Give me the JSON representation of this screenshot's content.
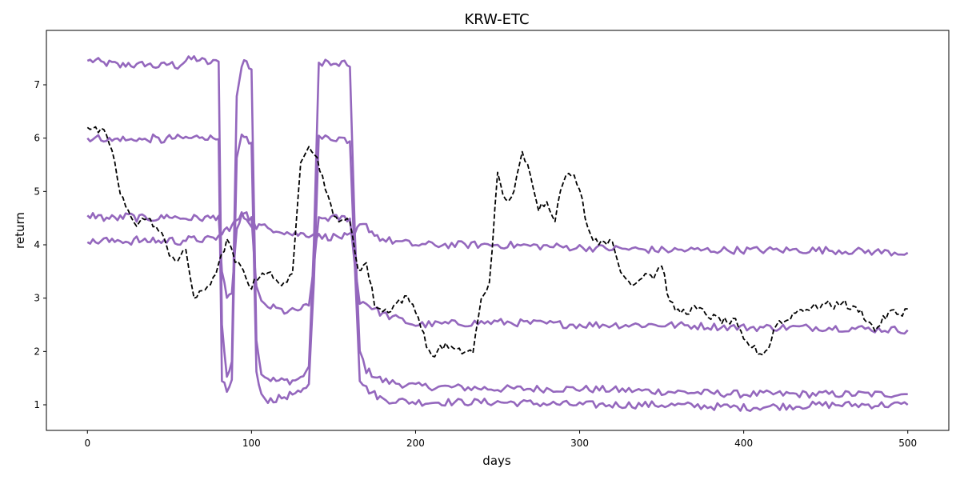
{
  "chart_data": {
    "type": "line",
    "title": "KRW-ETC",
    "xlabel": "days",
    "ylabel": "return",
    "xlim": [
      -25,
      525
    ],
    "ylim": [
      0.52,
      8.02
    ],
    "x_ticks": [
      0,
      100,
      200,
      300,
      400,
      500
    ],
    "y_ticks": [
      1,
      2,
      3,
      4,
      5,
      6,
      7
    ],
    "grid": false,
    "legend": "none",
    "colors": {
      "band": "#9467bd",
      "actual": "#000000"
    },
    "series": [
      {
        "style": "dashed",
        "color": "#000000",
        "x": [
          0,
          5,
          10,
          15,
          20,
          25,
          30,
          35,
          40,
          45,
          50,
          55,
          60,
          65,
          70,
          75,
          80,
          85,
          90,
          95,
          100,
          105,
          110,
          115,
          120,
          125,
          130,
          135,
          140,
          145,
          150,
          155,
          160,
          165,
          170,
          175,
          180,
          185,
          190,
          195,
          200,
          205,
          210,
          215,
          220,
          225,
          230,
          235,
          240,
          245,
          250,
          255,
          260,
          265,
          270,
          275,
          280,
          285,
          290,
          295,
          300,
          305,
          310,
          315,
          320,
          325,
          330,
          335,
          340,
          345,
          350,
          355,
          360,
          365,
          370,
          375,
          380,
          385,
          390,
          395,
          400,
          405,
          410,
          415,
          420,
          425,
          430,
          435,
          440,
          445,
          450,
          455,
          460,
          465,
          470,
          475,
          480,
          485,
          490,
          495,
          500
        ],
        "values": [
          6.2,
          6.15,
          6.1,
          5.8,
          4.95,
          4.6,
          4.4,
          4.5,
          4.4,
          4.2,
          3.85,
          3.7,
          3.9,
          3.0,
          3.1,
          3.3,
          3.6,
          4.1,
          3.7,
          3.5,
          3.2,
          3.45,
          3.5,
          3.3,
          3.3,
          3.4,
          5.6,
          5.9,
          5.6,
          5.1,
          4.5,
          4.5,
          4.4,
          3.55,
          3.65,
          2.9,
          2.75,
          2.8,
          2.95,
          3.0,
          2.8,
          2.3,
          1.85,
          2.1,
          2.1,
          2.0,
          2.0,
          2.0,
          2.95,
          3.3,
          5.3,
          4.8,
          5.0,
          5.7,
          5.35,
          4.7,
          4.8,
          4.5,
          5.2,
          5.35,
          5.1,
          4.3,
          4.05,
          4.1,
          4.0,
          3.5,
          3.3,
          3.3,
          3.5,
          3.4,
          3.65,
          2.9,
          2.75,
          2.75,
          2.8,
          2.75,
          2.65,
          2.6,
          2.55,
          2.55,
          2.2,
          2.1,
          1.95,
          2.05,
          2.55,
          2.55,
          2.7,
          2.8,
          2.8,
          2.85,
          2.9,
          2.85,
          2.95,
          2.8,
          2.8,
          2.6,
          2.4,
          2.6,
          2.75,
          2.7,
          2.8
        ]
      },
      {
        "style": "solid",
        "color": "#9467bd",
        "x": [
          0,
          5,
          10,
          15,
          20,
          25,
          30,
          35,
          40,
          45,
          50,
          55,
          60,
          65,
          70,
          75,
          80,
          82,
          85,
          88,
          91,
          94,
          97,
          100,
          103,
          106,
          110,
          115,
          120,
          125,
          130,
          135,
          138,
          141,
          145,
          150,
          155,
          160,
          163,
          166,
          170,
          175,
          180,
          200,
          250,
          300,
          350,
          400,
          450,
          500
        ],
        "values": [
          7.45,
          7.45,
          7.4,
          7.4,
          7.35,
          7.4,
          7.35,
          7.4,
          7.35,
          7.35,
          7.4,
          7.35,
          7.45,
          7.5,
          7.45,
          7.4,
          7.45,
          2.5,
          1.5,
          1.8,
          6.8,
          7.35,
          7.45,
          7.3,
          2.2,
          1.6,
          1.5,
          1.45,
          1.45,
          1.45,
          1.5,
          1.7,
          4.0,
          7.4,
          7.45,
          7.35,
          7.4,
          7.35,
          4.2,
          2.0,
          1.65,
          1.55,
          1.45,
          1.35,
          1.3,
          1.3,
          1.25,
          1.2,
          1.2,
          1.2
        ]
      },
      {
        "style": "solid",
        "color": "#9467bd",
        "x": [
          0,
          5,
          10,
          15,
          20,
          25,
          30,
          35,
          40,
          45,
          50,
          55,
          60,
          65,
          70,
          75,
          80,
          82,
          85,
          88,
          91,
          94,
          97,
          100,
          103,
          106,
          110,
          115,
          120,
          125,
          130,
          135,
          138,
          141,
          145,
          150,
          155,
          160,
          163,
          166,
          170,
          175,
          180,
          200,
          250,
          300,
          350,
          400,
          450,
          500
        ],
        "values": [
          6.0,
          6.0,
          6.0,
          5.95,
          6.0,
          5.95,
          6.0,
          5.95,
          6.0,
          5.95,
          6.0,
          6.0,
          6.0,
          6.0,
          6.05,
          6.0,
          6.0,
          1.5,
          1.2,
          1.45,
          5.6,
          6.0,
          6.0,
          5.9,
          1.6,
          1.15,
          1.1,
          1.1,
          1.15,
          1.2,
          1.2,
          1.4,
          3.3,
          6.0,
          6.0,
          6.0,
          6.0,
          5.95,
          3.6,
          1.5,
          1.3,
          1.2,
          1.1,
          1.05,
          1.05,
          1.0,
          1.0,
          0.95,
          1.0,
          1.0
        ]
      },
      {
        "style": "solid",
        "color": "#9467bd",
        "x": [
          0,
          5,
          10,
          15,
          20,
          25,
          30,
          35,
          40,
          45,
          50,
          55,
          60,
          65,
          70,
          75,
          80,
          82,
          85,
          88,
          91,
          94,
          97,
          100,
          103,
          106,
          110,
          115,
          120,
          125,
          130,
          135,
          138,
          141,
          145,
          150,
          155,
          160,
          163,
          166,
          170,
          175,
          180,
          200,
          250,
          300,
          350,
          400,
          450,
          500
        ],
        "values": [
          4.55,
          4.55,
          4.5,
          4.5,
          4.5,
          4.55,
          4.5,
          4.5,
          4.5,
          4.5,
          4.55,
          4.5,
          4.5,
          4.5,
          4.5,
          4.5,
          4.55,
          3.5,
          2.95,
          3.1,
          4.3,
          4.5,
          4.55,
          4.5,
          3.2,
          2.9,
          2.85,
          2.8,
          2.75,
          2.75,
          2.8,
          2.85,
          3.6,
          4.5,
          4.5,
          4.5,
          4.5,
          4.5,
          3.6,
          2.95,
          2.9,
          2.8,
          2.7,
          2.5,
          2.55,
          2.5,
          2.5,
          2.45,
          2.45,
          2.4
        ]
      },
      {
        "style": "solid",
        "color": "#9467bd",
        "x": [
          0,
          5,
          10,
          15,
          20,
          25,
          30,
          35,
          40,
          45,
          50,
          55,
          60,
          65,
          70,
          75,
          80,
          82,
          85,
          88,
          91,
          94,
          97,
          100,
          103,
          106,
          110,
          115,
          120,
          125,
          130,
          135,
          138,
          141,
          145,
          150,
          155,
          160,
          163,
          166,
          170,
          175,
          180,
          200,
          250,
          300,
          350,
          400,
          450,
          500
        ],
        "values": [
          4.05,
          4.05,
          4.1,
          4.05,
          4.1,
          4.05,
          4.1,
          4.05,
          4.1,
          4.05,
          4.1,
          4.05,
          4.1,
          4.1,
          4.1,
          4.1,
          4.15,
          4.2,
          4.3,
          4.35,
          4.45,
          4.55,
          4.5,
          4.4,
          4.35,
          4.35,
          4.3,
          4.3,
          4.25,
          4.2,
          4.2,
          4.2,
          4.2,
          4.15,
          4.15,
          4.15,
          4.15,
          4.15,
          4.2,
          4.35,
          4.35,
          4.2,
          4.1,
          4.0,
          4.0,
          3.95,
          3.9,
          3.9,
          3.9,
          3.85
        ]
      }
    ]
  }
}
